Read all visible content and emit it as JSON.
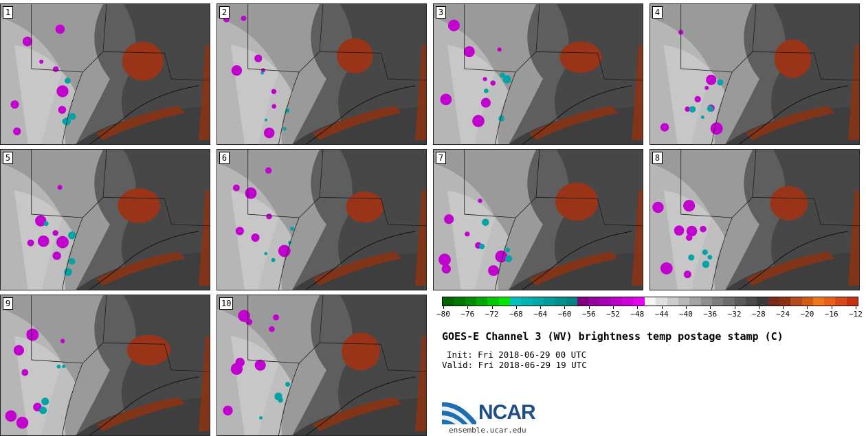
{
  "panels": [
    {
      "label": "1"
    },
    {
      "label": "2"
    },
    {
      "label": "3"
    },
    {
      "label": "4"
    },
    {
      "label": "5"
    },
    {
      "label": "6"
    },
    {
      "label": "7"
    },
    {
      "label": "8"
    },
    {
      "label": "9"
    },
    {
      "label": "10"
    }
  ],
  "colorbar": {
    "colors": [
      "#006400",
      "#007800",
      "#008c00",
      "#00a800",
      "#00c800",
      "#00e600",
      "#00c0c0",
      "#00b4b4",
      "#00a8a8",
      "#009c9c",
      "#009090",
      "#008484",
      "#800080",
      "#9400a0",
      "#a800b4",
      "#bc00c8",
      "#d000dc",
      "#e400f0",
      "#f4f4f4",
      "#e0e0e0",
      "#cccccc",
      "#b8b8b8",
      "#a4a4a4",
      "#909090",
      "#7c7c7c",
      "#6c6c6c",
      "#5a5a5a",
      "#4a4a4a",
      "#3a3a3a",
      "#7a2a1a",
      "#8e3010",
      "#b24a1a",
      "#d25c14",
      "#f07818",
      "#e8601c",
      "#d84818",
      "#c83010"
    ],
    "tick_labels": [
      "−80",
      "−76",
      "−72",
      "−68",
      "−64",
      "−60",
      "−56",
      "−52",
      "−48",
      "−44",
      "−40",
      "−36",
      "−32",
      "−28",
      "−24",
      "−20",
      "−16",
      "−12"
    ]
  },
  "title": "GOES-E Channel 3 (WV) brightness temp postage stamp (C)",
  "init": "Init: Fri 2018-06-29 00 UTC",
  "valid": "Valid: Fri 2018-06-29 19 UTC",
  "logo": {
    "word": "NCAR",
    "brand_color": "#1f4f86"
  },
  "site": "ensemble.ucar.edu"
}
